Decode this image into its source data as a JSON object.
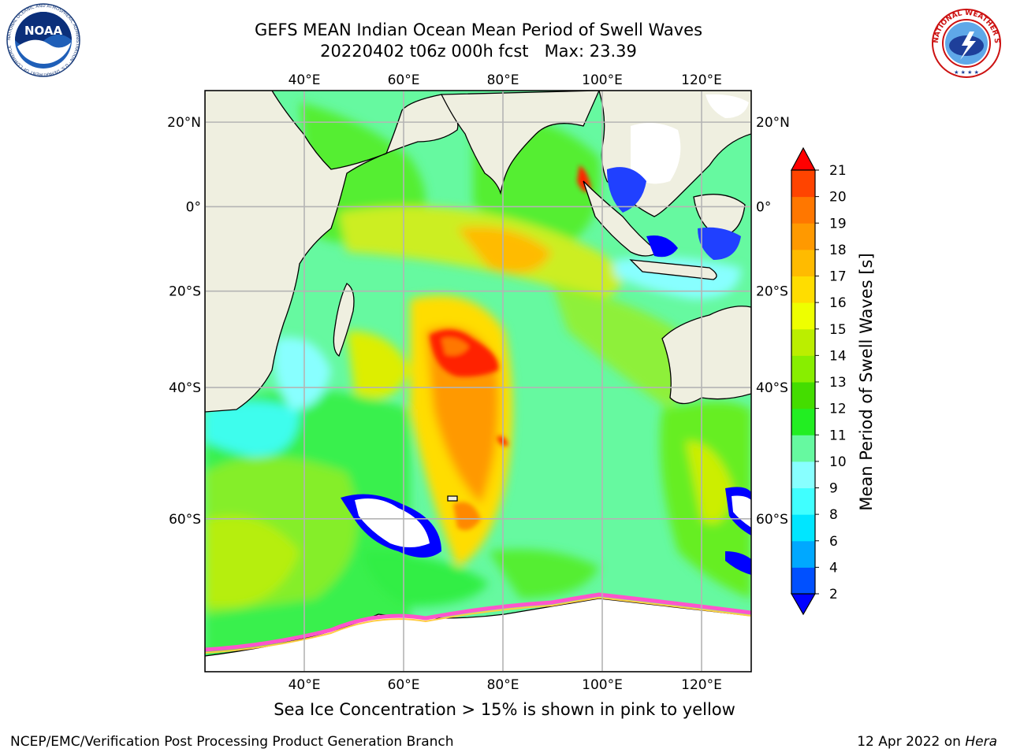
{
  "header": {
    "title_line1": "GEFS MEAN Indian Ocean Mean Period of Swell Waves",
    "title_line2": "20220402 t06z 000h fcst   Max: 23.39"
  },
  "logos": {
    "left": {
      "name": "noaa-logo",
      "text": "NOAA",
      "ring_text": "NATIONAL OCEANIC AND ATMOSPHERIC ADMINISTRATION · U.S. DEPARTMENT OF COMMERCE"
    },
    "right": {
      "name": "nws-logo",
      "ring_text": "NATIONAL WEATHER SERVICE"
    }
  },
  "map": {
    "lon_ticks": [
      "40°E",
      "60°E",
      "80°E",
      "100°E",
      "120°E"
    ],
    "lat_ticks": [
      "20°N",
      "0°",
      "20°S",
      "40°S",
      "60°S"
    ],
    "lon_values": [
      40,
      60,
      80,
      100,
      120
    ],
    "lat_values": [
      20,
      0,
      -20,
      -40,
      -60
    ],
    "extent": {
      "lon_min": 20,
      "lon_max": 130,
      "lat_min": -74,
      "lat_max": 27
    },
    "colors": {
      "land": "#efefe0",
      "ocean_base": "#66f9a0",
      "grid": "#b4b4b4",
      "sea_ice": "#ff55cc"
    }
  },
  "colorbar": {
    "label": "Mean Period of Swell Waves [s]",
    "ticks": [
      "2",
      "4",
      "6",
      "8",
      "9",
      "10",
      "11",
      "12",
      "13",
      "14",
      "15",
      "16",
      "17",
      "18",
      "19",
      "20",
      "21"
    ],
    "colors": [
      "#0050ff",
      "#00a8ff",
      "#00e6ff",
      "#40ffff",
      "#88ffff",
      "#66f9a0",
      "#22ee22",
      "#44dd00",
      "#88ee00",
      "#bbee00",
      "#eeff00",
      "#ffdd00",
      "#ffbb00",
      "#ff9900",
      "#ff7700",
      "#ff4400",
      "#ff1100"
    ],
    "under_color": "#0000ff",
    "over_color": "#ff0000"
  },
  "caption": "Sea Ice Concentration > 15% is shown in pink to yellow",
  "footer": {
    "credit": "NCEP/EMC/Verification Post Processing Product Generation Branch",
    "date": "12 Apr 2022 on ",
    "machine": "Hera"
  }
}
